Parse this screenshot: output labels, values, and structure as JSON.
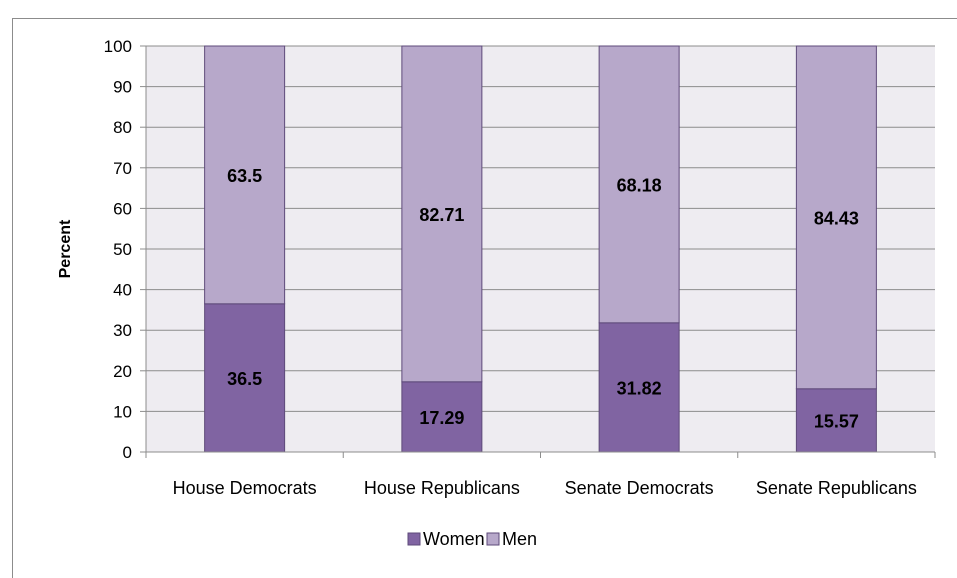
{
  "chart_data": {
    "type": "bar",
    "stacked": true,
    "title": "",
    "xlabel": "",
    "ylabel": "Percent",
    "ylim": [
      0,
      100
    ],
    "yticks": [
      0,
      10,
      20,
      30,
      40,
      50,
      60,
      70,
      80,
      90,
      100
    ],
    "categories": [
      "House Democrats",
      "House Republicans",
      "Senate Democrats",
      "Senate Republicans"
    ],
    "series": [
      {
        "name": "Women",
        "values": [
          36.5,
          17.29,
          31.82,
          15.57
        ],
        "color": "#8064a2",
        "labels": [
          "36.5",
          "17.29",
          "31.82",
          "15.57"
        ]
      },
      {
        "name": "Men",
        "values": [
          63.5,
          82.71,
          68.18,
          84.43
        ],
        "color": "#b7a8ca",
        "labels": [
          "63.5",
          "82.71",
          "68.18",
          "84.43"
        ]
      }
    ],
    "grid": true,
    "plot_background": "#eeecf1",
    "legend_position": "bottom"
  }
}
